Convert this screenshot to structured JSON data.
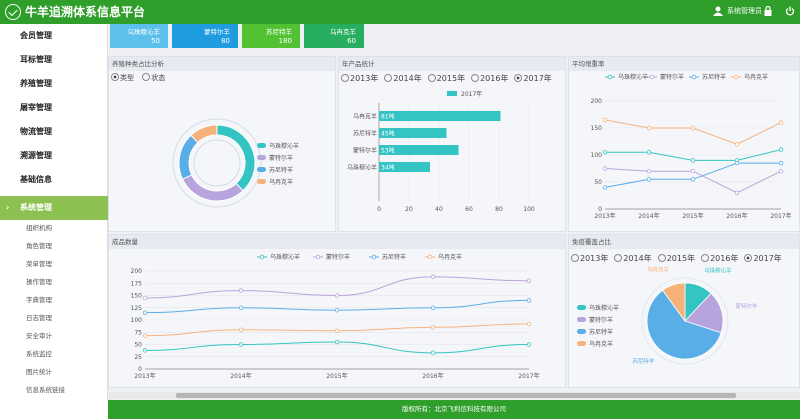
{
  "header": {
    "title": "牛羊追溯体系信息平台",
    "user": "系统管理员"
  },
  "menu": [
    {
      "label": "会员管理"
    },
    {
      "label": "耳标管理"
    },
    {
      "label": "养殖管理"
    },
    {
      "label": "屠宰管理"
    },
    {
      "label": "物流管理"
    },
    {
      "label": "溯源管理"
    },
    {
      "label": "基础信息"
    },
    {
      "label": "系统管理"
    }
  ],
  "submenu": [
    "组织机构",
    "角色管理",
    "菜单管理",
    "操作管理",
    "字典管理",
    "日志管理",
    "安全审计",
    "系统监控",
    "图片统计",
    "信息系统链接"
  ],
  "cards": [
    {
      "label": "乌珠穆沁羊",
      "value": "50",
      "color": "#5bc0eb"
    },
    {
      "label": "蒙特尔羊",
      "value": "80",
      "color": "#1f9be0"
    },
    {
      "label": "苏尼特羊",
      "value": "180",
      "color": "#52c233"
    },
    {
      "label": "乌冉克羊",
      "value": "60",
      "color": "#27ae60"
    }
  ],
  "panel1": {
    "title": "养殖种类占比分析",
    "opt1": "类型",
    "opt2": "状态"
  },
  "panel2": {
    "title": "年产品统计",
    "years": [
      "2013年",
      "2014年",
      "2015年",
      "2016年",
      "2017年"
    ],
    "legend": "2017年"
  },
  "panel3": {
    "title": "平均增重率"
  },
  "panel4": {
    "title": "成品数量"
  },
  "panel5": {
    "title": "免疫覆盖占比",
    "years": [
      "2013年",
      "2014年",
      "2015年",
      "2016年",
      "2017年"
    ]
  },
  "colors": {
    "teal": "#35c4c4",
    "purple": "#b8a4dc",
    "blue": "#5aaee8",
    "orange": "#f7b27c"
  },
  "footer": "版权所有：北京飞利信科技有限公司",
  "chart_data": [
    {
      "type": "pie",
      "title": "",
      "categories": [
        "乌珠穆沁羊",
        "蒙特尔羊",
        "苏尼特羊",
        "乌冉克羊"
      ],
      "values": [
        38,
        30,
        20,
        12
      ]
    },
    {
      "type": "bar",
      "title": "",
      "categories": [
        "乌冉克羊",
        "苏尼特羊",
        "蒙特尔羊",
        "乌珠穆沁羊"
      ],
      "series": [
        {
          "name": "2017年",
          "values": [
            81,
            45,
            53,
            34
          ]
        }
      ],
      "data_labels": [
        "81吨",
        "45吨",
        "53吨",
        "34吨"
      ],
      "xlim": [
        0,
        100
      ],
      "xticks": [
        "0",
        "20",
        "40",
        "60",
        "80",
        "100"
      ]
    },
    {
      "type": "line",
      "title": "",
      "x": [
        "2013年",
        "2014年",
        "2015年",
        "2016年",
        "2017年"
      ],
      "ylim": [
        0,
        200
      ],
      "yticks": [
        "0",
        "50",
        "100",
        "150",
        "200"
      ],
      "series": [
        {
          "name": "乌珠穆沁羊",
          "values": [
            105,
            105,
            90,
            90,
            110
          ]
        },
        {
          "name": "蒙特尔羊",
          "values": [
            75,
            70,
            70,
            30,
            70
          ]
        },
        {
          "name": "苏尼特羊",
          "values": [
            40,
            55,
            55,
            85,
            85
          ]
        },
        {
          "name": "乌冉克羊",
          "values": [
            165,
            150,
            150,
            120,
            160
          ]
        }
      ]
    },
    {
      "type": "line",
      "title": "",
      "x": [
        "2013年",
        "2014年",
        "2015年",
        "2016年",
        "2017年"
      ],
      "ylim": [
        0,
        200
      ],
      "yticks": [
        "0",
        "25",
        "50",
        "75",
        "100",
        "125",
        "150",
        "175",
        "200"
      ],
      "series": [
        {
          "name": "乌珠穆沁羊",
          "values": [
            38,
            50,
            55,
            33,
            50
          ]
        },
        {
          "name": "蒙特尔羊",
          "values": [
            145,
            160,
            150,
            188,
            180
          ]
        },
        {
          "name": "苏尼特羊",
          "values": [
            115,
            125,
            120,
            125,
            140
          ]
        },
        {
          "name": "乌冉克羊",
          "values": [
            68,
            80,
            78,
            85,
            92
          ]
        }
      ]
    },
    {
      "type": "pie",
      "title": "",
      "categories": [
        "乌珠穆沁羊",
        "蒙特尔羊",
        "苏尼特羊",
        "乌冉克羊"
      ],
      "values": [
        12,
        18,
        60,
        10
      ],
      "legend_labels": [
        "乌珠穆沁羊",
        "蒙特尔羊",
        "苏尼特羊",
        "乌冉克羊"
      ]
    }
  ]
}
